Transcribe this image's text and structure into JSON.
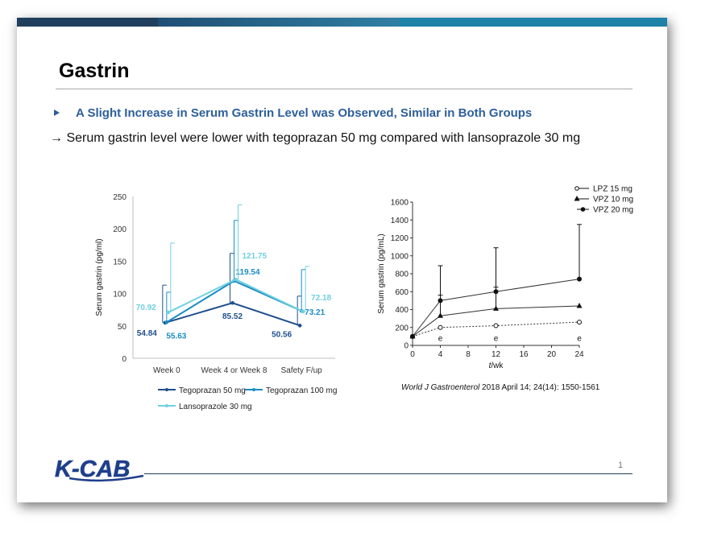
{
  "slide": {
    "title": "Gastrin",
    "bullet": "A Slight Increase in Serum Gastrin Level was Observed, Similar in Both Groups",
    "arrow_line": "→ Serum gastrin level were lower with tegoprazan 50 mg compared with lansoprazole 30 mg",
    "citation_journal": "World J Gastroenterol",
    "citation_rest": "2018 April 14; 24(14): 1550-1561",
    "logo_text": "K-CAB",
    "page_number": "1"
  },
  "colors": {
    "topbar_dark": "#1f3f5c",
    "topbar_teal": "#1e82a9",
    "bullet_blue": "#2d5f9a",
    "tegoprazan_50": "#1f4e8c",
    "tegoprazan_100": "#1b8cc4",
    "lansoprazole_30": "#6fd0e0"
  },
  "chart_data": [
    {
      "type": "line",
      "ylabel": "Serum gastrin (pg/ml)",
      "xlabel": "",
      "ylim": [
        0,
        250
      ],
      "yticks": [
        0,
        50,
        100,
        150,
        200,
        250
      ],
      "categories": [
        "Week 0",
        "Week 4 or Week 8",
        "Safety F/up"
      ],
      "series": [
        {
          "name": "Tegoprazan 50 mg",
          "values": [
            54.84,
            85.52,
            50.56
          ],
          "error_upper": [
            113,
            162,
            96
          ],
          "labels": [
            "54.84",
            "85.52",
            "50.56"
          ],
          "color": "#1f4e8c"
        },
        {
          "name": "Tegoprazan 100 mg",
          "values": [
            55.63,
            119.54,
            73.21
          ],
          "error_upper": [
            102,
            213,
            137
          ],
          "labels": [
            "55.63",
            "119.54",
            "73.21"
          ],
          "color": "#1b8cc4"
        },
        {
          "name": "Lansoprazole 30 mg",
          "values": [
            70.92,
            121.75,
            72.18
          ],
          "error_upper": [
            178,
            237,
            142
          ],
          "labels": [
            "70.92",
            "121.75",
            "72.18"
          ],
          "color": "#6fd0e0"
        }
      ],
      "legend": "bottom",
      "grid": false
    },
    {
      "type": "line",
      "ylabel": "Serum gastrin (pg/mL)",
      "xlabel": "t/wk",
      "ylim": [
        0,
        1600
      ],
      "yticks": [
        0,
        200,
        400,
        600,
        800,
        1000,
        1200,
        1400,
        1600
      ],
      "xlim": [
        0,
        24
      ],
      "xticks": [
        0,
        4,
        8,
        12,
        16,
        20,
        24
      ],
      "series": [
        {
          "name": "LPZ 15 mg",
          "marker": "open-circle",
          "x": [
            0,
            4,
            12,
            24
          ],
          "values": [
            100,
            200,
            220,
            260
          ]
        },
        {
          "name": "VPZ 10 mg",
          "marker": "triangle",
          "x": [
            0,
            4,
            12,
            24
          ],
          "values": [
            100,
            330,
            410,
            440
          ],
          "error_upper": [
            null,
            560,
            650,
            null
          ]
        },
        {
          "name": "VPZ 20 mg",
          "marker": "filled-circle",
          "x": [
            0,
            4,
            12,
            24
          ],
          "values": [
            100,
            500,
            600,
            740
          ],
          "error_upper": [
            null,
            890,
            1090,
            1350
          ]
        }
      ],
      "annotations": [
        "e",
        "e",
        "e"
      ],
      "legend": "top-right",
      "grid": false
    }
  ]
}
